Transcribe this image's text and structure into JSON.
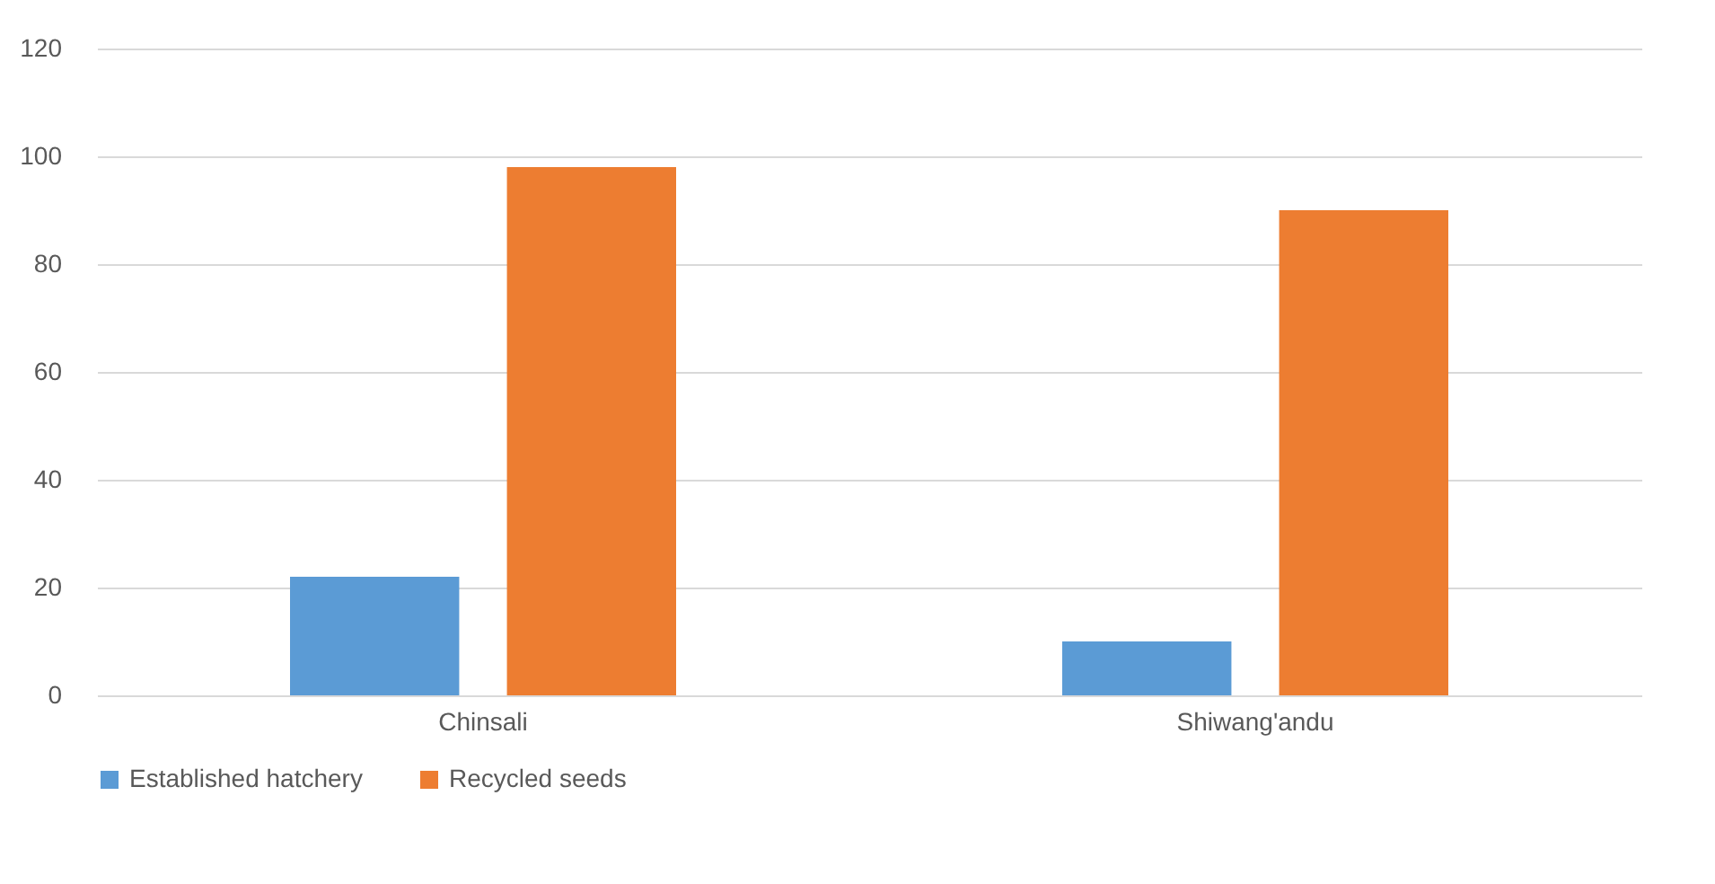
{
  "chart_data": {
    "type": "bar",
    "categories": [
      "Chinsali",
      "Shiwang'andu"
    ],
    "series": [
      {
        "name": "Established hatchery",
        "color": "#5b9bd5",
        "values": [
          22,
          10
        ]
      },
      {
        "name": "Recycled seeds",
        "color": "#ed7d31",
        "values": [
          98,
          90
        ]
      }
    ],
    "ylim": [
      0,
      120
    ],
    "yticks": [
      0,
      20,
      40,
      60,
      80,
      100,
      120
    ],
    "grid": "y",
    "legend": "bottom"
  }
}
